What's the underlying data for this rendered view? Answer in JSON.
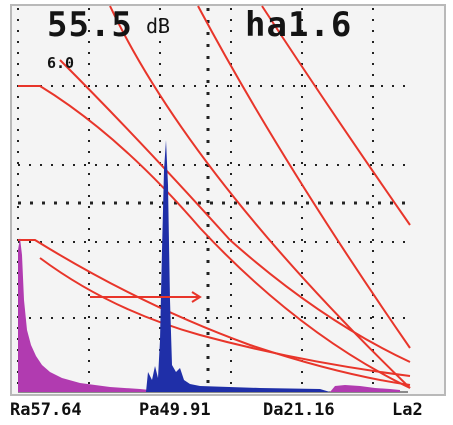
{
  "header": {
    "gain_value": "55.5",
    "gain_unit": "dB",
    "gate_readout": "ha1.6",
    "range_label": "6.0"
  },
  "readouts": {
    "ra": "Ra57.64",
    "pa": "Pa49.91",
    "da": "Da21.16",
    "la": "La2"
  },
  "colors": {
    "curves": "#e8352a",
    "gate_marker": "#e8352a",
    "echo_primary": "#1f2fa8",
    "echo_near_field": "#b13bb0",
    "grid": "#222222"
  }
}
